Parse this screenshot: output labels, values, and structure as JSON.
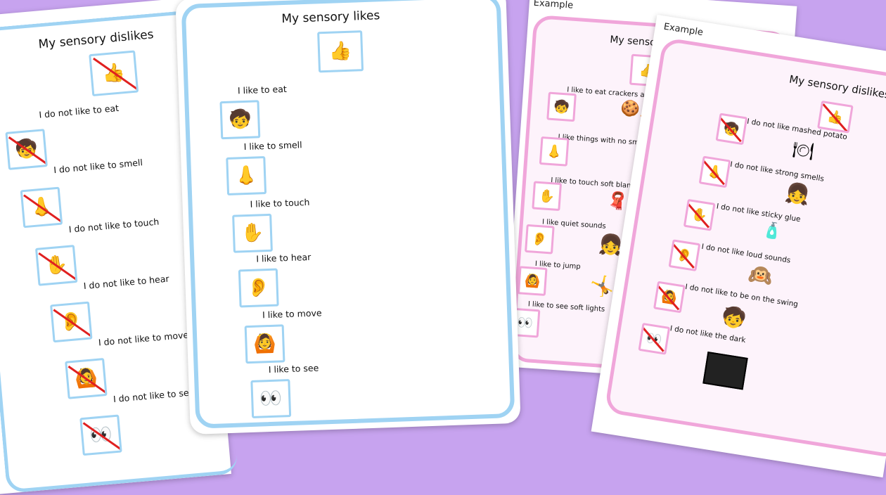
{
  "dislikes_sheet": {
    "title": "My sensory dislikes",
    "items": [
      "I do not like to eat",
      "I do not like to smell",
      "I do not like to touch",
      "I do not like to hear",
      "I do not like to move",
      "I do not like to see"
    ],
    "icons": [
      "thumbs-up-icon",
      "child-eating-icon",
      "nose-icon",
      "hand-icon",
      "ear-icon",
      "child-jumping-icon",
      "eyes-icon"
    ]
  },
  "likes_sheet": {
    "title": "My sensory likes",
    "items": [
      "I like to eat",
      "I like to smell",
      "I like to touch",
      "I like to hear",
      "I like to move",
      "I like to see"
    ]
  },
  "example_likes": {
    "tag": "Example",
    "title": "My sensory likes",
    "items": [
      "I like to eat crackers and crunch",
      "I like things with no smell",
      "I like to touch soft blankets",
      "I like quiet sounds",
      "I like to jump",
      "I like to see soft lights"
    ]
  },
  "example_dislikes": {
    "tag": "Example",
    "title": "My sensory dislikes",
    "items": [
      "I do not like mashed potato",
      "I do not like strong smells",
      "I do not like sticky glue",
      "I do not like loud sounds",
      "I do not like to be on the swing",
      "I do not like the dark"
    ]
  },
  "colors": {
    "background": "#c7a3ef",
    "blue_border": "#9fd3f3",
    "pink_border": "#f0a6da",
    "cross": "#e02020"
  }
}
